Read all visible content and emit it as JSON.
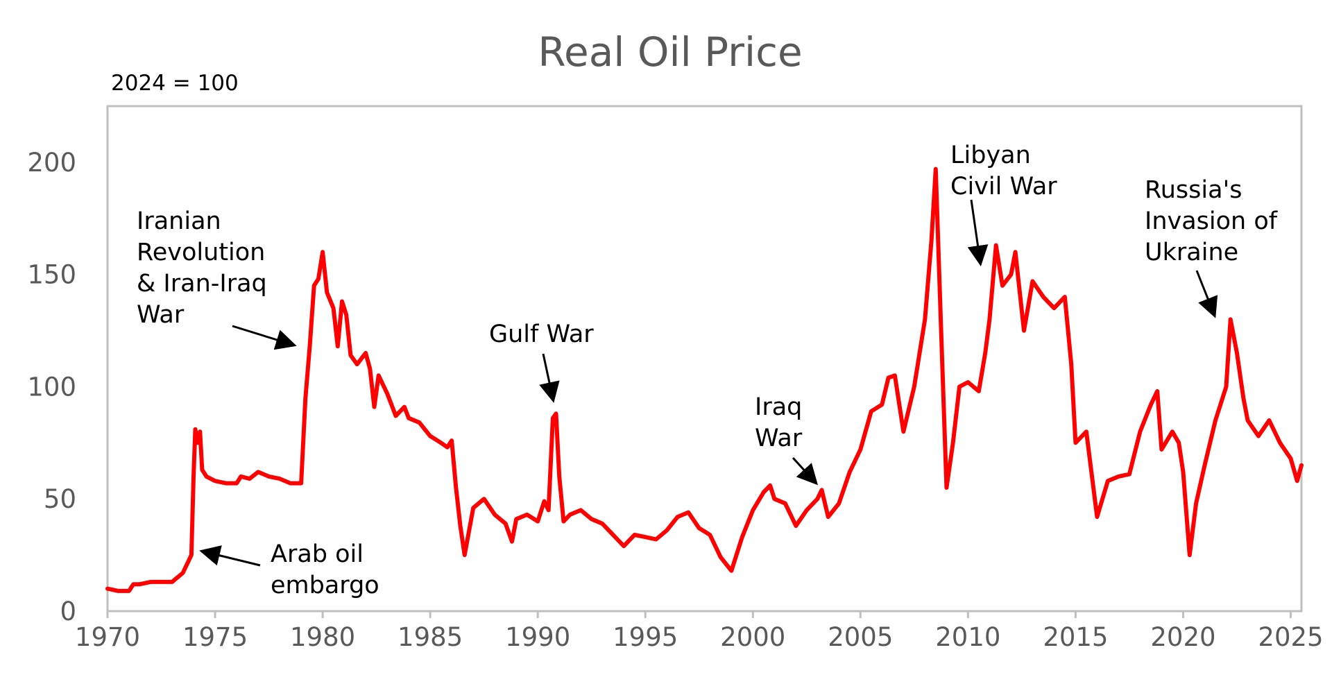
{
  "chart_data": {
    "type": "line",
    "title": "Real Oil Price",
    "subtitle": "2024 = 100",
    "xlabel": "",
    "ylabel": "",
    "xlim": [
      1970,
      2025.5
    ],
    "ylim": [
      0,
      225
    ],
    "grid": false,
    "x_ticks": [
      1970,
      1975,
      1980,
      1985,
      1990,
      1995,
      2000,
      2005,
      2010,
      2015,
      2020,
      2025
    ],
    "y_ticks": [
      0,
      50,
      100,
      150,
      200
    ],
    "series_color": "#ff0000",
    "series": [
      {
        "points": [
          [
            1970.0,
            10
          ],
          [
            1970.5,
            9
          ],
          [
            1971.0,
            9
          ],
          [
            1971.2,
            12
          ],
          [
            1971.5,
            12
          ],
          [
            1972.0,
            13
          ],
          [
            1972.5,
            13
          ],
          [
            1973.0,
            13
          ],
          [
            1973.5,
            17
          ],
          [
            1973.9,
            25
          ],
          [
            1974.0,
            60
          ],
          [
            1974.08,
            81
          ],
          [
            1974.2,
            75
          ],
          [
            1974.3,
            80
          ],
          [
            1974.4,
            63
          ],
          [
            1974.6,
            60
          ],
          [
            1975.0,
            58
          ],
          [
            1975.5,
            57
          ],
          [
            1976.0,
            57
          ],
          [
            1976.2,
            60
          ],
          [
            1976.6,
            59
          ],
          [
            1977.0,
            62
          ],
          [
            1977.5,
            60
          ],
          [
            1978.0,
            59
          ],
          [
            1978.5,
            57
          ],
          [
            1979.0,
            57
          ],
          [
            1979.2,
            95
          ],
          [
            1979.4,
            118
          ],
          [
            1979.6,
            145
          ],
          [
            1979.8,
            148
          ],
          [
            1980.0,
            160
          ],
          [
            1980.2,
            142
          ],
          [
            1980.5,
            135
          ],
          [
            1980.7,
            118
          ],
          [
            1980.9,
            138
          ],
          [
            1981.1,
            132
          ],
          [
            1981.3,
            114
          ],
          [
            1981.6,
            110
          ],
          [
            1982.0,
            115
          ],
          [
            1982.2,
            108
          ],
          [
            1982.4,
            91
          ],
          [
            1982.6,
            105
          ],
          [
            1983.0,
            97
          ],
          [
            1983.4,
            87
          ],
          [
            1983.8,
            91
          ],
          [
            1984.0,
            86
          ],
          [
            1984.5,
            84
          ],
          [
            1985.0,
            78
          ],
          [
            1985.5,
            75
          ],
          [
            1985.8,
            73
          ],
          [
            1986.0,
            76
          ],
          [
            1986.2,
            55
          ],
          [
            1986.4,
            38
          ],
          [
            1986.6,
            25
          ],
          [
            1987.0,
            46
          ],
          [
            1987.5,
            50
          ],
          [
            1988.0,
            43
          ],
          [
            1988.5,
            39
          ],
          [
            1988.8,
            31
          ],
          [
            1989.0,
            41
          ],
          [
            1989.5,
            43
          ],
          [
            1990.0,
            40
          ],
          [
            1990.3,
            49
          ],
          [
            1990.5,
            45
          ],
          [
            1990.7,
            86
          ],
          [
            1990.85,
            88
          ],
          [
            1991.0,
            60
          ],
          [
            1991.2,
            40
          ],
          [
            1991.5,
            43
          ],
          [
            1992.0,
            45
          ],
          [
            1992.5,
            41
          ],
          [
            1993.0,
            39
          ],
          [
            1993.5,
            34
          ],
          [
            1994.0,
            29
          ],
          [
            1994.5,
            34
          ],
          [
            1995.0,
            33
          ],
          [
            1995.5,
            32
          ],
          [
            1996.0,
            36
          ],
          [
            1996.5,
            42
          ],
          [
            1997.0,
            44
          ],
          [
            1997.5,
            37
          ],
          [
            1998.0,
            34
          ],
          [
            1998.5,
            24
          ],
          [
            1999.0,
            18
          ],
          [
            1999.5,
            33
          ],
          [
            2000.0,
            45
          ],
          [
            2000.5,
            53
          ],
          [
            2000.8,
            56
          ],
          [
            2001.0,
            50
          ],
          [
            2001.5,
            48
          ],
          [
            2002.0,
            38
          ],
          [
            2002.5,
            45
          ],
          [
            2003.0,
            50
          ],
          [
            2003.2,
            54
          ],
          [
            2003.5,
            42
          ],
          [
            2004.0,
            48
          ],
          [
            2004.5,
            62
          ],
          [
            2005.0,
            72
          ],
          [
            2005.5,
            89
          ],
          [
            2006.0,
            92
          ],
          [
            2006.3,
            104
          ],
          [
            2006.6,
            105
          ],
          [
            2007.0,
            80
          ],
          [
            2007.5,
            100
          ],
          [
            2008.0,
            130
          ],
          [
            2008.3,
            165
          ],
          [
            2008.5,
            197
          ],
          [
            2008.75,
            125
          ],
          [
            2009.0,
            55
          ],
          [
            2009.3,
            75
          ],
          [
            2009.6,
            100
          ],
          [
            2010.0,
            102
          ],
          [
            2010.5,
            98
          ],
          [
            2010.8,
            115
          ],
          [
            2011.0,
            130
          ],
          [
            2011.3,
            163
          ],
          [
            2011.6,
            145
          ],
          [
            2012.0,
            150
          ],
          [
            2012.2,
            160
          ],
          [
            2012.6,
            125
          ],
          [
            2013.0,
            147
          ],
          [
            2013.5,
            140
          ],
          [
            2014.0,
            135
          ],
          [
            2014.5,
            140
          ],
          [
            2014.8,
            110
          ],
          [
            2015.0,
            75
          ],
          [
            2015.5,
            80
          ],
          [
            2016.0,
            42
          ],
          [
            2016.5,
            58
          ],
          [
            2017.0,
            60
          ],
          [
            2017.5,
            61
          ],
          [
            2018.0,
            80
          ],
          [
            2018.5,
            92
          ],
          [
            2018.8,
            98
          ],
          [
            2019.0,
            72
          ],
          [
            2019.5,
            80
          ],
          [
            2019.8,
            75
          ],
          [
            2020.0,
            62
          ],
          [
            2020.3,
            25
          ],
          [
            2020.6,
            48
          ],
          [
            2021.0,
            65
          ],
          [
            2021.5,
            85
          ],
          [
            2022.0,
            100
          ],
          [
            2022.2,
            130
          ],
          [
            2022.5,
            115
          ],
          [
            2022.8,
            95
          ],
          [
            2023.0,
            85
          ],
          [
            2023.5,
            78
          ],
          [
            2024.0,
            85
          ],
          [
            2024.5,
            75
          ],
          [
            2025.0,
            68
          ],
          [
            2025.3,
            58
          ],
          [
            2025.5,
            65
          ]
        ]
      }
    ],
    "annotations": [
      {
        "lines": [
          "Arab oil",
          "embargo"
        ],
        "x": 1974.0,
        "y": 25
      },
      {
        "lines": [
          "Iranian",
          "Revolution",
          "& Iran-Iraq",
          "War"
        ],
        "x": 1978.8,
        "y": 118
      },
      {
        "lines": [
          "Gulf War"
        ],
        "x": 1990.7,
        "y": 92
      },
      {
        "lines": [
          "Iraq",
          "War"
        ],
        "x": 2003.0,
        "y": 55
      },
      {
        "lines": [
          "Libyan",
          "Civil War"
        ],
        "x": 2010.8,
        "y": 155
      },
      {
        "lines": [
          "Russia's",
          "Invasion of",
          "Ukraine"
        ],
        "x": 2021.9,
        "y": 130
      }
    ]
  }
}
